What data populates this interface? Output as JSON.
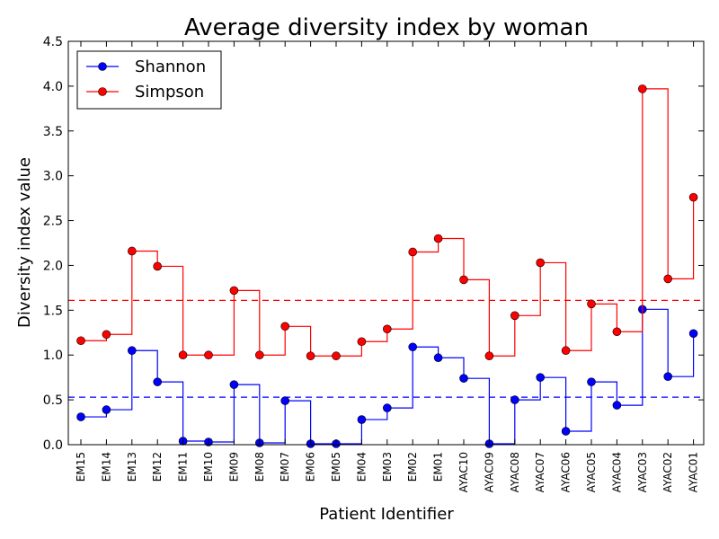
{
  "chart_data": {
    "type": "line",
    "title": "Average diversity index by woman",
    "xlabel": "Patient Identifier",
    "ylabel": "Diversity index value",
    "categories": [
      "EM15",
      "EM14",
      "EM13",
      "EM12",
      "EM11",
      "EM10",
      "EM09",
      "EM08",
      "EM07",
      "EM06",
      "EM05",
      "EM04",
      "EM03",
      "EM02",
      "EM01",
      "AYAC10",
      "AYAC09",
      "AYAC08",
      "AYAC07",
      "AYAC06",
      "AYAC05",
      "AYAC04",
      "AYAC03",
      "AYAC02",
      "AYAC01"
    ],
    "ylim": [
      0,
      4.5
    ],
    "yticks": [
      "0.0",
      "0.5",
      "1.0",
      "1.5",
      "2.0",
      "2.5",
      "3.0",
      "3.5",
      "4.0",
      "4.5"
    ],
    "grid": false,
    "legend_position": "top-left",
    "step_style": "post",
    "series": [
      {
        "name": "Shannon",
        "color": "#0000ff",
        "mean": 0.53,
        "values": [
          0.31,
          0.39,
          1.05,
          0.7,
          0.04,
          0.03,
          0.67,
          0.02,
          0.49,
          0.01,
          0.01,
          0.28,
          0.41,
          1.09,
          0.97,
          0.74,
          0.01,
          0.5,
          0.75,
          0.15,
          0.7,
          0.44,
          1.51,
          0.76,
          1.24
        ]
      },
      {
        "name": "Simpson",
        "color": "#ff0000",
        "mean": 1.61,
        "values": [
          1.16,
          1.23,
          2.16,
          1.99,
          1.0,
          1.0,
          1.72,
          1.0,
          1.32,
          0.99,
          0.99,
          1.15,
          1.29,
          2.15,
          2.3,
          1.84,
          0.99,
          1.44,
          2.03,
          1.05,
          1.57,
          1.26,
          3.97,
          1.85,
          2.76
        ]
      }
    ]
  }
}
